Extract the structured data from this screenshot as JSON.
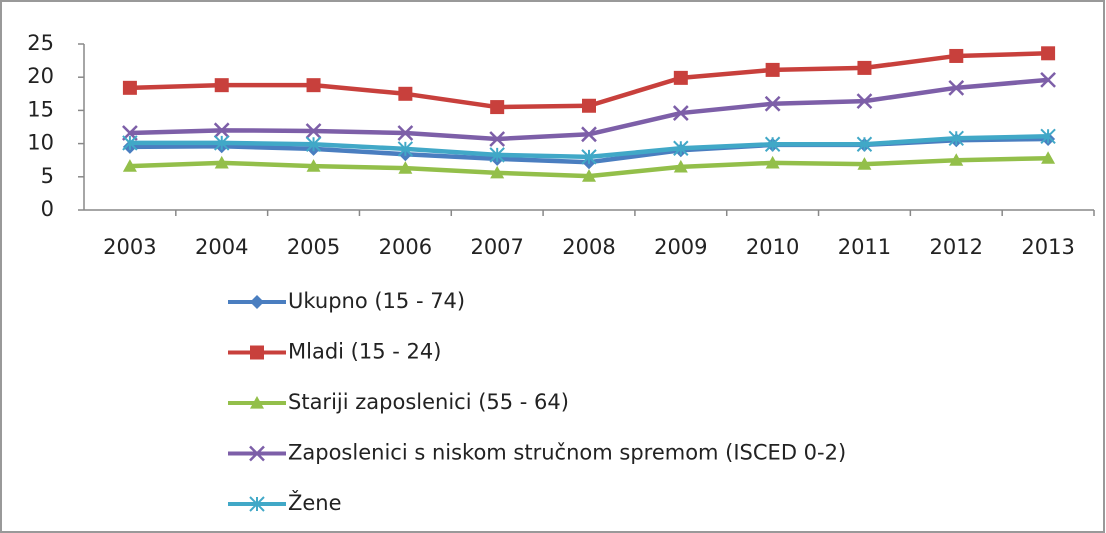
{
  "chart_data": {
    "type": "line",
    "categories": [
      "2003",
      "2004",
      "2005",
      "2006",
      "2007",
      "2008",
      "2009",
      "2010",
      "2011",
      "2012",
      "2013"
    ],
    "series": [
      {
        "name": "Ukupno (15 - 74)",
        "color": "#4a7ec0",
        "marker": "diamond",
        "values": [
          9.5,
          9.6,
          9.2,
          8.4,
          7.7,
          7.2,
          9.0,
          9.8,
          9.8,
          10.5,
          10.7
        ]
      },
      {
        "name": "Mladi (15 - 24)",
        "color": "#c8403c",
        "marker": "square",
        "values": [
          18.4,
          18.8,
          18.8,
          17.5,
          15.5,
          15.7,
          19.9,
          21.1,
          21.4,
          23.2,
          23.6
        ]
      },
      {
        "name": "Stariji zaposlenici (55 - 64)",
        "color": "#93bf4a",
        "marker": "triangle",
        "values": [
          6.6,
          7.1,
          6.6,
          6.3,
          5.6,
          5.1,
          6.5,
          7.1,
          6.9,
          7.5,
          7.8
        ]
      },
      {
        "name": "Zaposlenici s niskom stručnom spremom (ISCED 0-2)",
        "color": "#7d5fa8",
        "marker": "x",
        "values": [
          11.6,
          12.0,
          11.9,
          11.6,
          10.7,
          11.4,
          14.6,
          16.0,
          16.4,
          18.4,
          19.6
        ]
      },
      {
        "name": "Žene",
        "color": "#41a8c7",
        "marker": "star",
        "values": [
          10.1,
          10.1,
          9.9,
          9.2,
          8.3,
          8.0,
          9.3,
          9.9,
          9.9,
          10.8,
          11.1
        ]
      }
    ],
    "ylim": [
      0,
      25
    ],
    "yticks": [
      0,
      5,
      10,
      15,
      20,
      25
    ],
    "grid": false,
    "legend": "bottom"
  }
}
